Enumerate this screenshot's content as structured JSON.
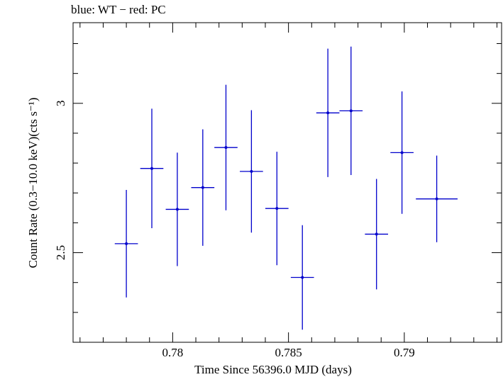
{
  "chart_data": {
    "type": "scatter",
    "title": "blue: WT − red: PC",
    "xlabel": "Time Since 56396.0 MJD (days)",
    "ylabel": "Count Rate (0.3−10.0 keV)(cts s⁻¹)",
    "xlim": [
      0.7757,
      0.7942
    ],
    "ylim": [
      2.2,
      3.27
    ],
    "x_ticks": [
      0.78,
      0.785,
      0.79
    ],
    "x_tick_labels": [
      "0.78",
      "0.785",
      "0.79"
    ],
    "y_ticks": [
      2.5,
      3.0
    ],
    "y_tick_labels": [
      "2.5",
      "3"
    ],
    "grid": false,
    "series": [
      {
        "color": "#0000cc",
        "points": [
          {
            "x": 0.778,
            "y": 2.53,
            "xerr": 0.0005,
            "yerr_low": 0.18,
            "yerr_high": 0.18
          },
          {
            "x": 0.7791,
            "y": 2.782,
            "xerr": 0.0005,
            "yerr_low": 0.2,
            "yerr_high": 0.2
          },
          {
            "x": 0.7802,
            "y": 2.645,
            "xerr": 0.0005,
            "yerr_low": 0.19,
            "yerr_high": 0.19
          },
          {
            "x": 0.7813,
            "y": 2.718,
            "xerr": 0.0005,
            "yerr_low": 0.195,
            "yerr_high": 0.195
          },
          {
            "x": 0.7823,
            "y": 2.852,
            "xerr": 0.0005,
            "yerr_low": 0.21,
            "yerr_high": 0.21
          },
          {
            "x": 0.7834,
            "y": 2.772,
            "xerr": 0.0005,
            "yerr_low": 0.205,
            "yerr_high": 0.205
          },
          {
            "x": 0.7845,
            "y": 2.648,
            "xerr": 0.0005,
            "yerr_low": 0.19,
            "yerr_high": 0.19
          },
          {
            "x": 0.7856,
            "y": 2.417,
            "xerr": 0.0005,
            "yerr_low": 0.175,
            "yerr_high": 0.175
          },
          {
            "x": 0.7867,
            "y": 2.968,
            "xerr": 0.0005,
            "yerr_low": 0.215,
            "yerr_high": 0.215
          },
          {
            "x": 0.7877,
            "y": 2.975,
            "xerr": 0.0005,
            "yerr_low": 0.215,
            "yerr_high": 0.215
          },
          {
            "x": 0.7888,
            "y": 2.562,
            "xerr": 0.0005,
            "yerr_low": 0.185,
            "yerr_high": 0.185
          },
          {
            "x": 0.7899,
            "y": 2.835,
            "xerr": 0.0005,
            "yerr_low": 0.205,
            "yerr_high": 0.205
          },
          {
            "x": 0.7914,
            "y": 2.68,
            "xerr": 0.0009,
            "yerr_low": 0.145,
            "yerr_high": 0.145
          }
        ]
      }
    ]
  }
}
